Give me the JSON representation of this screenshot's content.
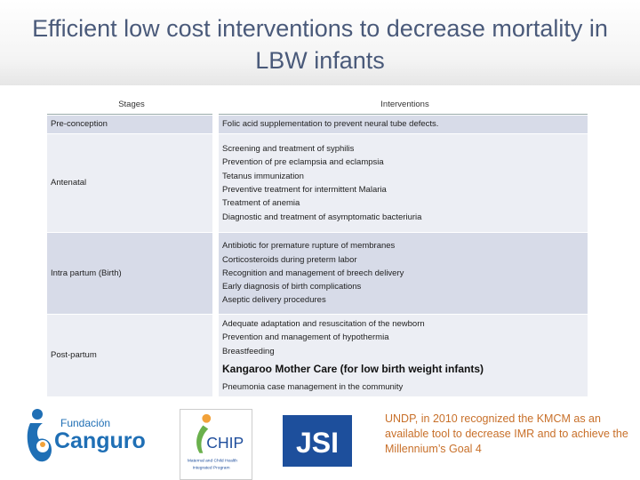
{
  "title": "Efficient low cost interventions to decrease mortality in LBW infants",
  "table": {
    "headers": {
      "stages": "Stages",
      "interventions": "Interventions"
    },
    "rows": [
      {
        "stage": "Pre-conception",
        "items": [
          "Folic acid supplementation to prevent neural tube defects."
        ]
      },
      {
        "stage": "Antenatal",
        "items": [
          "Screening and treatment of syphilis",
          "Prevention of pre eclampsia and eclampsia",
          "Tetanus immunization",
          "Preventive treatment for intermittent Malaria",
          "Treatment of anemia",
          "Diagnostic  and treatment of asymptomatic bacteriuria"
        ]
      },
      {
        "stage": "Intra partum (Birth)",
        "items": [
          "Antibiotic for premature rupture of membranes",
          "Corticosteroids during preterm labor",
          "Recognition and management of breech delivery",
          "Early diagnosis of birth complications",
          "Aseptic delivery procedures"
        ]
      },
      {
        "stage": "Post-partum",
        "items": [
          "Adequate adaptation and resuscitation of the newborn",
          "Prevention and management of hypothermia",
          "Breastfeeding"
        ],
        "highlight": "Kangaroo Mother Care (for low birth weight infants)",
        "items_after": [
          "Pneumonia case management in the community"
        ]
      }
    ]
  },
  "logos": {
    "canguro": {
      "top": "Fundación",
      "main": "Canguro"
    },
    "chip": {
      "main": "CHIP",
      "sub1": "Maternal and Child Health",
      "sub2": "Integrated Program"
    },
    "jsi": {
      "main": "JSI"
    }
  },
  "note": "UNDP, in 2010 recognized the KMCM as an available tool to decrease IMR and to achieve the Millennium’s Goal 4",
  "colors": {
    "title": "#4a5a7a",
    "note": "#c8702a",
    "row_light": "#eceef4",
    "row_dark": "#d7dbe8"
  }
}
